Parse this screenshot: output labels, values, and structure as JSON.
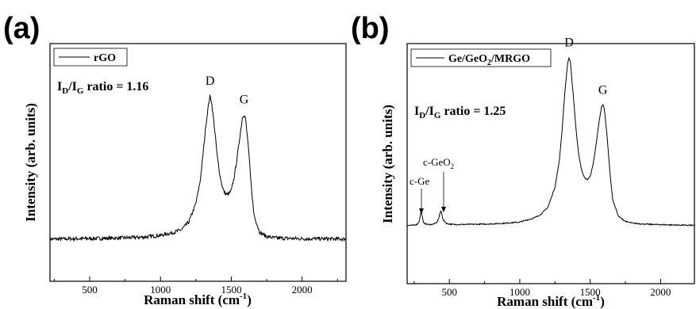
{
  "chart_data": [
    {
      "type": "line",
      "panel_label": "(a)",
      "xlabel": "Raman shift (cm",
      "xlabel_sup": "-1",
      "xlabel_end": ")",
      "ylabel": "Intensity (arb. units)",
      "xlim": [
        220,
        2310
      ],
      "ylim": [
        0,
        1
      ],
      "xticks": [
        500,
        1000,
        1500,
        2000
      ],
      "xtick_labels": [
        "500",
        "1000",
        "1500",
        "2000"
      ],
      "grid": false,
      "legend": {
        "placement": "top-left",
        "entries": [
          "rGO"
        ]
      },
      "ratio": {
        "I1": "I",
        "sub1": "D",
        "slash": "/",
        "I2": "I",
        "sub2": "G",
        "rest": " ratio = 1.16"
      },
      "peaks": [
        {
          "label": "D",
          "x": 1350,
          "y": 0.82
        },
        {
          "label": "G",
          "x": 1590,
          "y": 0.72
        }
      ],
      "series": [
        {
          "name": "rGO",
          "x": [
            220,
            400,
            600,
            800,
            900,
            1000,
            1100,
            1150,
            1200,
            1250,
            1280,
            1300,
            1320,
            1340,
            1350,
            1360,
            1380,
            1400,
            1420,
            1440,
            1460,
            1480,
            1500,
            1520,
            1540,
            1560,
            1580,
            1590,
            1600,
            1620,
            1640,
            1660,
            1700,
            1750,
            1800,
            1900,
            2000,
            2100,
            2200,
            2310
          ],
          "y": [
            0.048,
            0.05,
            0.052,
            0.056,
            0.06,
            0.068,
            0.085,
            0.1,
            0.14,
            0.24,
            0.36,
            0.5,
            0.66,
            0.78,
            0.82,
            0.79,
            0.66,
            0.5,
            0.39,
            0.32,
            0.29,
            0.29,
            0.31,
            0.38,
            0.48,
            0.6,
            0.71,
            0.72,
            0.7,
            0.55,
            0.34,
            0.18,
            0.085,
            0.062,
            0.055,
            0.052,
            0.05,
            0.05,
            0.049,
            0.048
          ]
        }
      ]
    },
    {
      "type": "line",
      "panel_label": "(b)",
      "xlabel": "Raman shift (cm",
      "xlabel_sup": "-1",
      "xlabel_end": ")",
      "ylabel": "Intensity (arb. units)",
      "xlim": [
        200,
        2240
      ],
      "ylim": [
        0,
        1
      ],
      "xticks": [
        500,
        1000,
        1500,
        2000
      ],
      "xtick_labels": [
        "500",
        "1000",
        "1500",
        "2000"
      ],
      "grid": false,
      "legend": {
        "placement": "top-left",
        "entry_parts": [
          "Ge/GeO",
          "2",
          "/MRGO"
        ]
      },
      "ratio": {
        "I1": "I",
        "sub1": "D",
        "slash": "/",
        "I2": "I",
        "sub2": "G",
        "rest": " ratio = 1.25"
      },
      "peaks": [
        {
          "label": "D",
          "x": 1350,
          "y": 0.95
        },
        {
          "label": "G",
          "x": 1590,
          "y": 0.69
        }
      ],
      "annotations": [
        {
          "label": "c-Ge",
          "x": 300,
          "y": 0.13
        },
        {
          "label_parts": [
            "c-GeO",
            "2"
          ],
          "x": 440,
          "y": 0.12
        }
      ],
      "series": [
        {
          "name": "Ge/GeO2/MRGO",
          "x": [
            200,
            240,
            270,
            285,
            295,
            300,
            305,
            315,
            340,
            380,
            410,
            425,
            435,
            440,
            445,
            455,
            480,
            520,
            600,
            700,
            800,
            900,
            1000,
            1100,
            1150,
            1200,
            1250,
            1280,
            1300,
            1320,
            1340,
            1350,
            1360,
            1380,
            1400,
            1420,
            1440,
            1460,
            1480,
            1500,
            1520,
            1540,
            1560,
            1580,
            1590,
            1600,
            1620,
            1640,
            1660,
            1700,
            1750,
            1800,
            1900,
            2000,
            2100,
            2240
          ],
          "y": [
            0.03,
            0.03,
            0.035,
            0.05,
            0.09,
            0.12,
            0.09,
            0.045,
            0.035,
            0.035,
            0.045,
            0.07,
            0.1,
            0.11,
            0.1,
            0.06,
            0.04,
            0.035,
            0.035,
            0.036,
            0.038,
            0.042,
            0.048,
            0.07,
            0.09,
            0.13,
            0.24,
            0.38,
            0.55,
            0.76,
            0.92,
            0.95,
            0.92,
            0.74,
            0.55,
            0.41,
            0.33,
            0.29,
            0.28,
            0.3,
            0.36,
            0.46,
            0.58,
            0.68,
            0.69,
            0.67,
            0.52,
            0.32,
            0.17,
            0.08,
            0.052,
            0.042,
            0.036,
            0.034,
            0.032,
            0.03
          ]
        }
      ]
    }
  ]
}
